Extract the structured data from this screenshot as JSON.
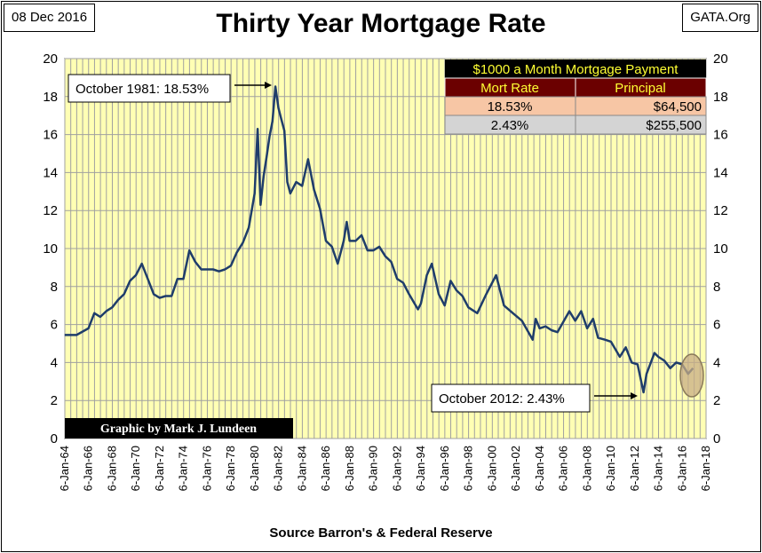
{
  "header": {
    "date": "08 Dec 2016",
    "source_tag": "GATA.Org"
  },
  "footer": {
    "source": "Source Barron's & Federal Reserve"
  },
  "colors": {
    "plot_background": "#ffffb4",
    "line": "#1f3d6b",
    "table_title_bg": "#000000",
    "table_title_text": "#ffff33",
    "table_header_bg": "#6b0000",
    "row1_bg": "#f7c6a5",
    "row2_bg": "#d4d4d4",
    "credit_bg": "#000000",
    "circle_fill": "#c8ae86"
  },
  "chart_data": {
    "type": "line",
    "title": "Thirty Year Mortgage Rate",
    "xlabel": "",
    "ylabel": "",
    "ylim": [
      0,
      20
    ],
    "xlim": [
      "1964-01-06",
      "2018-01-06"
    ],
    "grid": true,
    "y_ticks": [
      "0",
      "2",
      "4",
      "6",
      "8",
      "10",
      "12",
      "14",
      "16",
      "18",
      "20"
    ],
    "x_tick_labels": [
      "6-Jan-64",
      "6-Jan-66",
      "6-Jan-68",
      "6-Jan-70",
      "6-Jan-72",
      "6-Jan-74",
      "6-Jan-76",
      "6-Jan-78",
      "6-Jan-80",
      "6-Jan-82",
      "6-Jan-84",
      "6-Jan-86",
      "6-Jan-88",
      "6-Jan-90",
      "6-Jan-92",
      "6-Jan-94",
      "6-Jan-96",
      "6-Jan-98",
      "6-Jan-00",
      "6-Jan-02",
      "6-Jan-04",
      "6-Jan-06",
      "6-Jan-08",
      "6-Jan-10",
      "6-Jan-12",
      "6-Jan-14",
      "6-Jan-16",
      "6-Jan-18"
    ],
    "series": [
      {
        "x": [
          "1964-01",
          "1965-01",
          "1966-01",
          "1966-07",
          "1967-01",
          "1967-07",
          "1968-01",
          "1968-07",
          "1969-01",
          "1969-07",
          "1970-01",
          "1970-07",
          "1971-01",
          "1971-07",
          "1972-01",
          "1972-07",
          "1973-01",
          "1973-07",
          "1974-01",
          "1974-07",
          "1975-01",
          "1975-07",
          "1976-01",
          "1976-07",
          "1977-01",
          "1977-07",
          "1978-01",
          "1978-07",
          "1979-01",
          "1979-07",
          "1980-01",
          "1980-04",
          "1980-07",
          "1980-10",
          "1981-01",
          "1981-04",
          "1981-07",
          "1981-10",
          "1982-01",
          "1982-04",
          "1982-07",
          "1982-10",
          "1983-01",
          "1983-07",
          "1984-01",
          "1984-07",
          "1985-01",
          "1985-07",
          "1986-01",
          "1986-07",
          "1987-01",
          "1987-07",
          "1987-10",
          "1988-01",
          "1988-07",
          "1989-01",
          "1989-07",
          "1990-01",
          "1990-07",
          "1991-01",
          "1991-07",
          "1992-01",
          "1992-07",
          "1993-01",
          "1993-10",
          "1994-01",
          "1994-07",
          "1994-12",
          "1995-07",
          "1996-01",
          "1996-07",
          "1997-01",
          "1997-07",
          "1998-01",
          "1998-10",
          "1999-07",
          "2000-05",
          "2001-01",
          "2001-10",
          "2002-07",
          "2003-06",
          "2003-09",
          "2004-01",
          "2004-07",
          "2005-01",
          "2005-07",
          "2006-07",
          "2007-01",
          "2007-07",
          "2008-01",
          "2008-07",
          "2008-12",
          "2009-07",
          "2010-01",
          "2010-10",
          "2011-04",
          "2011-10",
          "2012-04",
          "2012-10",
          "2013-01",
          "2013-09",
          "2014-01",
          "2014-07",
          "2015-01",
          "2015-07",
          "2016-01",
          "2016-07",
          "2016-12"
        ],
        "y": [
          5.45,
          5.45,
          5.8,
          6.6,
          6.4,
          6.7,
          6.9,
          7.3,
          7.6,
          8.3,
          8.6,
          9.2,
          8.4,
          7.6,
          7.4,
          7.5,
          7.5,
          8.4,
          8.4,
          9.9,
          9.3,
          8.9,
          8.9,
          8.9,
          8.8,
          8.9,
          9.1,
          9.8,
          10.3,
          11.1,
          12.9,
          16.3,
          12.3,
          13.8,
          14.8,
          15.9,
          16.7,
          18.53,
          17.4,
          16.8,
          16.2,
          13.5,
          12.9,
          13.5,
          13.3,
          14.7,
          13.1,
          12.1,
          10.4,
          10.1,
          9.2,
          10.4,
          11.4,
          10.4,
          10.4,
          10.7,
          9.9,
          9.9,
          10.1,
          9.6,
          9.3,
          8.4,
          8.2,
          7.6,
          6.8,
          7.1,
          8.6,
          9.2,
          7.6,
          7.0,
          8.3,
          7.8,
          7.5,
          6.9,
          6.6,
          7.6,
          8.6,
          7.0,
          6.6,
          6.2,
          5.2,
          6.3,
          5.8,
          5.9,
          5.7,
          5.6,
          6.7,
          6.2,
          6.7,
          5.8,
          6.3,
          5.3,
          5.2,
          5.1,
          4.3,
          4.8,
          4.0,
          3.9,
          2.43,
          3.4,
          4.5,
          4.3,
          4.1,
          3.7,
          4.0,
          3.9,
          3.4,
          3.7
        ]
      }
    ],
    "annotations": [
      {
        "text": "October 1981: 18.53%",
        "x": "1981-10",
        "y": 18.53
      },
      {
        "text": "October 2012: 2.43%",
        "x": "2012-10",
        "y": 2.43
      }
    ],
    "inset_table": {
      "title": "$1000 a Month Mortgage Payment",
      "headers": [
        "Mort Rate",
        "Principal"
      ],
      "rows": [
        [
          "18.53%",
          "$64,500"
        ],
        [
          "2.43%",
          "$255,500"
        ]
      ]
    },
    "credit": "Graphic by Mark J. Lundeen"
  }
}
